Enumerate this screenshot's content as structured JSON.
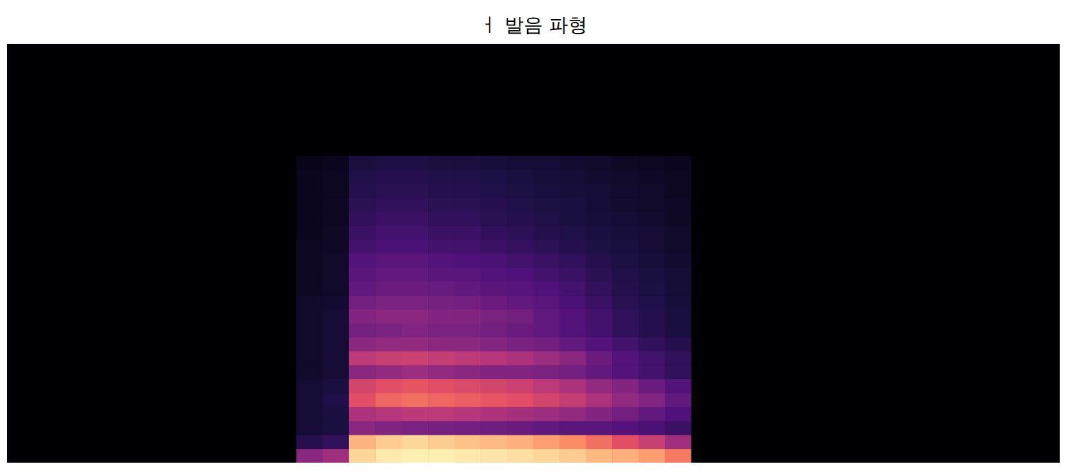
{
  "chart_data": {
    "type": "heatmap",
    "title": "ㅓ 발음 파형",
    "xlim": [
      0,
      40
    ],
    "ylim": [
      0,
      30
    ],
    "zlim": [
      0,
      100
    ],
    "tick_labels": false,
    "cells": [
      [
        0,
        0,
        0,
        0,
        0,
        0,
        0,
        0,
        0,
        0,
        0,
        0,
        0,
        0,
        0,
        0,
        0,
        0,
        0,
        0,
        0,
        0,
        0,
        0,
        0,
        0,
        0,
        0,
        0,
        0
      ],
      [
        0,
        0,
        0,
        0,
        0,
        0,
        0,
        0,
        0,
        0,
        0,
        0,
        0,
        0,
        0,
        0,
        0,
        0,
        0,
        0,
        0,
        0,
        0,
        0,
        0,
        0,
        0,
        0,
        0,
        0
      ],
      [
        0,
        0,
        0,
        0,
        0,
        0,
        0,
        0,
        0,
        0,
        0,
        0,
        0,
        0,
        0,
        0,
        0,
        0,
        0,
        0,
        0,
        0,
        0,
        0,
        0,
        0,
        0,
        0,
        0,
        0
      ],
      [
        0,
        0,
        0,
        0,
        0,
        0,
        0,
        0,
        0,
        0,
        0,
        0,
        0,
        0,
        0,
        0,
        0,
        0,
        0,
        0,
        0,
        0,
        0,
        0,
        0,
        0,
        0,
        0,
        0,
        0
      ],
      [
        0,
        0,
        0,
        0,
        0,
        0,
        0,
        0,
        0,
        0,
        0,
        0,
        0,
        0,
        0,
        0,
        0,
        0,
        0,
        0,
        0,
        0,
        0,
        0,
        0,
        0,
        0,
        0,
        0,
        0
      ],
      [
        0,
        0,
        0,
        0,
        0,
        0,
        0,
        0,
        0,
        0,
        0,
        0,
        0,
        0,
        0,
        0,
        0,
        0,
        0,
        0,
        0,
        0,
        0,
        0,
        0,
        0,
        0,
        0,
        0,
        0
      ],
      [
        0,
        0,
        0,
        0,
        0,
        0,
        0,
        0,
        0,
        0,
        0,
        0,
        0,
        0,
        0,
        0,
        0,
        0,
        0,
        0,
        0,
        0,
        0,
        0,
        0,
        0,
        0,
        0,
        0,
        0
      ],
      [
        0,
        0,
        0,
        0,
        0,
        0,
        0,
        0,
        0,
        0,
        0,
        0,
        0,
        0,
        0,
        0,
        0,
        0,
        0,
        0,
        0,
        0,
        0,
        0,
        0,
        0,
        0,
        0,
        0,
        0
      ],
      [
        0,
        0,
        0,
        0,
        0,
        0,
        0,
        0,
        0,
        0,
        0,
        0,
        0,
        0,
        0,
        0,
        0,
        0,
        0,
        0,
        0,
        0,
        0,
        0,
        0,
        0,
        0,
        0,
        0,
        0
      ],
      [
        0,
        0,
        0,
        0,
        0,
        0,
        0,
        0,
        0,
        0,
        0,
        0,
        0,
        0,
        0,
        0,
        0,
        0,
        0,
        0,
        0,
        0,
        0,
        0,
        0,
        0,
        0,
        0,
        0,
        0
      ],
      [
        0,
        0,
        0,
        0,
        0,
        0,
        0,
        0,
        0,
        0,
        0,
        0,
        0,
        0,
        0,
        0,
        0,
        0,
        0,
        0,
        0,
        0,
        0,
        0,
        0,
        0,
        0,
        0,
        0,
        0
      ],
      [
        40,
        15,
        10,
        10,
        10,
        10,
        8,
        8,
        8,
        8,
        8,
        8,
        6,
        6,
        6,
        6,
        5,
        5,
        5,
        5,
        5,
        4,
        0,
        0,
        0,
        0,
        0,
        0,
        0,
        0
      ],
      [
        45,
        18,
        12,
        12,
        14,
        12,
        10,
        10,
        10,
        10,
        10,
        9,
        8,
        8,
        8,
        7,
        7,
        6,
        6,
        6,
        6,
        5,
        0,
        0,
        0,
        0,
        0,
        0,
        0,
        0
      ],
      [
        92,
        85,
        40,
        48,
        62,
        58,
        40,
        52,
        40,
        35,
        38,
        34,
        30,
        28,
        26,
        22,
        20,
        18,
        16,
        15,
        14,
        12,
        0,
        0,
        0,
        0,
        0,
        0,
        0,
        0
      ],
      [
        96,
        90,
        38,
        50,
        68,
        62,
        42,
        55,
        42,
        36,
        40,
        36,
        32,
        30,
        28,
        24,
        22,
        20,
        18,
        16,
        15,
        13,
        0,
        0,
        0,
        0,
        0,
        0,
        0,
        0
      ],
      [
        97,
        92,
        36,
        52,
        70,
        64,
        44,
        56,
        42,
        38,
        40,
        36,
        32,
        30,
        28,
        24,
        22,
        20,
        18,
        16,
        15,
        13,
        0,
        0,
        0,
        0,
        0,
        0,
        0,
        0
      ],
      [
        97,
        90,
        35,
        52,
        68,
        62,
        42,
        54,
        40,
        36,
        38,
        35,
        31,
        28,
        26,
        22,
        20,
        18,
        16,
        15,
        14,
        12,
        0,
        0,
        0,
        0,
        0,
        0,
        0,
        0
      ],
      [
        96,
        88,
        34,
        50,
        66,
        60,
        40,
        52,
        40,
        36,
        38,
        34,
        30,
        28,
        25,
        22,
        20,
        18,
        16,
        15,
        14,
        12,
        0,
        0,
        0,
        0,
        0,
        0,
        0,
        0
      ],
      [
        95,
        86,
        33,
        48,
        64,
        58,
        38,
        50,
        38,
        34,
        36,
        32,
        28,
        26,
        24,
        20,
        18,
        16,
        15,
        14,
        13,
        11,
        0,
        0,
        0,
        0,
        0,
        0,
        0,
        0
      ],
      [
        94,
        84,
        32,
        46,
        62,
        56,
        38,
        48,
        36,
        32,
        34,
        30,
        27,
        25,
        22,
        19,
        17,
        15,
        14,
        13,
        12,
        10,
        0,
        0,
        0,
        0,
        0,
        0,
        0,
        0
      ],
      [
        92,
        80,
        30,
        44,
        58,
        52,
        36,
        44,
        34,
        30,
        30,
        28,
        25,
        22,
        20,
        17,
        15,
        14,
        13,
        12,
        11,
        10,
        0,
        0,
        0,
        0,
        0,
        0,
        0,
        0
      ],
      [
        90,
        76,
        28,
        42,
        54,
        48,
        34,
        40,
        30,
        26,
        26,
        24,
        22,
        20,
        18,
        15,
        14,
        12,
        12,
        11,
        10,
        9,
        0,
        0,
        0,
        0,
        0,
        0,
        0,
        0
      ],
      [
        86,
        70,
        28,
        38,
        48,
        42,
        30,
        32,
        26,
        22,
        22,
        20,
        18,
        16,
        15,
        13,
        12,
        11,
        10,
        10,
        9,
        8,
        0,
        0,
        0,
        0,
        0,
        0,
        0,
        0
      ],
      [
        84,
        62,
        26,
        34,
        42,
        38,
        26,
        26,
        22,
        18,
        18,
        16,
        15,
        14,
        13,
        12,
        11,
        10,
        9,
        9,
        8,
        7,
        0,
        0,
        0,
        0,
        0,
        0,
        0,
        0
      ],
      [
        80,
        55,
        24,
        30,
        38,
        32,
        22,
        22,
        18,
        15,
        15,
        14,
        13,
        12,
        11,
        10,
        10,
        9,
        8,
        8,
        7,
        6,
        0,
        0,
        0,
        0,
        0,
        0,
        0,
        0
      ],
      [
        72,
        45,
        20,
        25,
        30,
        26,
        18,
        18,
        15,
        12,
        12,
        11,
        10,
        10,
        9,
        8,
        8,
        7,
        7,
        6,
        6,
        5,
        0,
        0,
        0,
        0,
        0,
        0,
        0,
        0
      ],
      [
        0,
        0,
        0,
        0,
        0,
        0,
        0,
        0,
        0,
        0,
        0,
        0,
        0,
        0,
        0,
        0,
        0,
        0,
        0,
        0,
        0,
        0,
        0,
        0,
        0,
        0,
        0,
        0,
        0,
        0
      ],
      [
        0,
        0,
        0,
        0,
        0,
        0,
        0,
        0,
        0,
        0,
        0,
        0,
        0,
        0,
        0,
        0,
        0,
        0,
        0,
        0,
        0,
        0,
        0,
        0,
        0,
        0,
        0,
        0,
        0,
        0
      ],
      [
        0,
        0,
        0,
        0,
        0,
        0,
        0,
        0,
        0,
        0,
        0,
        0,
        0,
        0,
        0,
        0,
        0,
        0,
        0,
        0,
        0,
        0,
        0,
        0,
        0,
        0,
        0,
        0,
        0,
        0
      ],
      [
        0,
        0,
        0,
        0,
        0,
        0,
        0,
        0,
        0,
        0,
        0,
        0,
        0,
        0,
        0,
        0,
        0,
        0,
        0,
        0,
        0,
        0,
        0,
        0,
        0,
        0,
        0,
        0,
        0,
        0
      ],
      [
        0,
        0,
        0,
        0,
        0,
        0,
        0,
        0,
        0,
        0,
        0,
        0,
        0,
        0,
        0,
        0,
        0,
        0,
        0,
        0,
        0,
        0,
        0,
        0,
        0,
        0,
        0,
        0,
        0,
        0
      ],
      [
        0,
        0,
        0,
        0,
        0,
        0,
        0,
        0,
        0,
        0,
        0,
        0,
        0,
        0,
        0,
        0,
        0,
        0,
        0,
        0,
        0,
        0,
        0,
        0,
        0,
        0,
        0,
        0,
        0,
        0
      ],
      [
        0,
        0,
        0,
        0,
        0,
        0,
        0,
        0,
        0,
        0,
        0,
        0,
        0,
        0,
        0,
        0,
        0,
        0,
        0,
        0,
        0,
        0,
        0,
        0,
        0,
        0,
        0,
        0,
        0,
        0
      ],
      [
        0,
        0,
        0,
        0,
        0,
        0,
        0,
        0,
        0,
        0,
        0,
        0,
        0,
        0,
        0,
        0,
        0,
        0,
        0,
        0,
        0,
        0,
        0,
        0,
        0,
        0,
        0,
        0,
        0,
        0
      ],
      [
        0,
        0,
        0,
        0,
        0,
        0,
        0,
        0,
        0,
        0,
        0,
        0,
        0,
        0,
        0,
        0,
        0,
        0,
        0,
        0,
        0,
        0,
        0,
        0,
        0,
        0,
        0,
        0,
        0,
        0
      ],
      [
        0,
        0,
        0,
        0,
        0,
        0,
        0,
        0,
        0,
        0,
        0,
        0,
        0,
        0,
        0,
        0,
        0,
        0,
        0,
        0,
        0,
        0,
        0,
        0,
        0,
        0,
        0,
        0,
        0,
        0
      ],
      [
        0,
        0,
        0,
        0,
        0,
        0,
        0,
        0,
        0,
        0,
        0,
        0,
        0,
        0,
        0,
        0,
        0,
        0,
        0,
        0,
        0,
        0,
        0,
        0,
        0,
        0,
        0,
        0,
        0,
        0
      ],
      [
        0,
        0,
        0,
        0,
        0,
        0,
        0,
        0,
        0,
        0,
        0,
        0,
        0,
        0,
        0,
        0,
        0,
        0,
        0,
        0,
        0,
        0,
        0,
        0,
        0,
        0,
        0,
        0,
        0,
        0
      ],
      [
        0,
        0,
        0,
        0,
        0,
        0,
        0,
        0,
        0,
        0,
        0,
        0,
        0,
        0,
        0,
        0,
        0,
        0,
        0,
        0,
        0,
        0,
        0,
        0,
        0,
        0,
        0,
        0,
        0,
        0
      ],
      [
        0,
        0,
        0,
        0,
        0,
        0,
        0,
        0,
        0,
        0,
        0,
        0,
        0,
        0,
        0,
        0,
        0,
        0,
        0,
        0,
        0,
        0,
        0,
        0,
        0,
        0,
        0,
        0,
        0,
        0
      ]
    ]
  }
}
